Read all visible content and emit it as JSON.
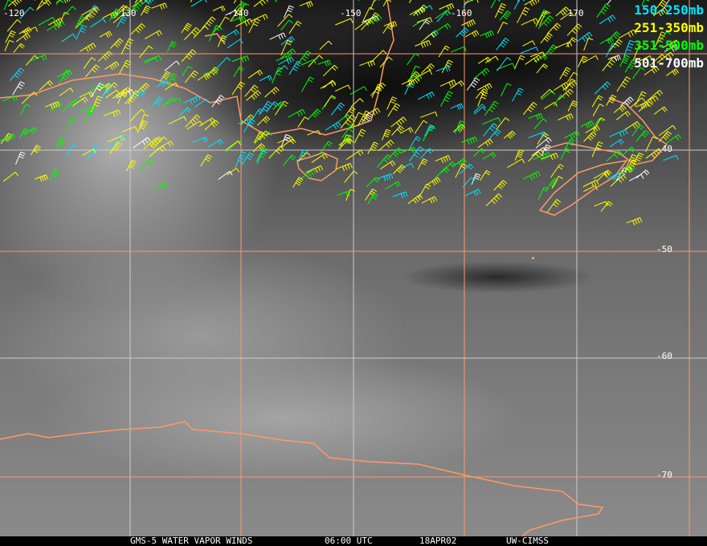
{
  "footer": {
    "satellite": "GMS-5 WATER VAPOR WINDS",
    "time": "06:00 UTC",
    "date": "18APR02",
    "source": "UW-CIMSS"
  },
  "legend": [
    {
      "label": "150-250mb",
      "color": "#00e5ff"
    },
    {
      "label": "251-350mb",
      "color": "#ffff00"
    },
    {
      "label": "351-500mb",
      "color": "#00ff00"
    },
    {
      "label": "501-700mb",
      "color": "#ffffff"
    }
  ],
  "longitude_labels": [
    "-120",
    "-130",
    "-140",
    "-150",
    "-160",
    "-170"
  ],
  "latitude_labels": [
    "-40",
    "-50",
    "-60",
    "-70"
  ],
  "colors": {
    "coastline": "#ff9966",
    "grid_orange": "#ff9966",
    "grid_white": "#cccccc"
  }
}
